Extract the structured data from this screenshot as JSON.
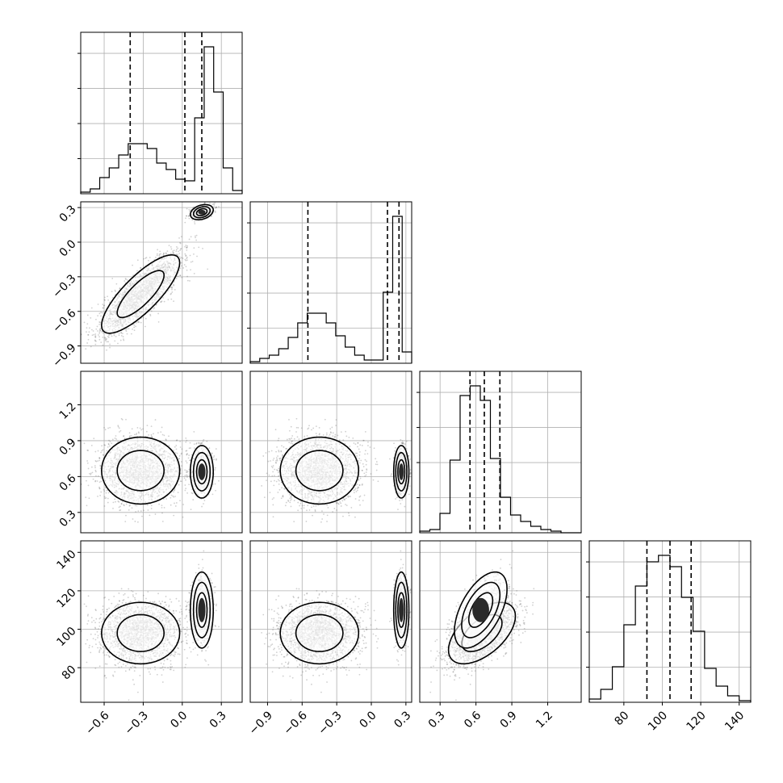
{
  "chart_data": {
    "type": "corner",
    "grid": true,
    "colors": {
      "hist": "#000000",
      "points": "#555555",
      "contour": "#000000",
      "grid": "#b0b0b0",
      "fill": "#2a2a2a"
    },
    "params": [
      {
        "id": "p0",
        "range": [
          -0.78,
          0.46
        ],
        "ticks": [
          -0.6,
          -0.3,
          0.0,
          0.3
        ],
        "tick_labels": [
          "−0.6",
          "−0.3",
          "0.0",
          "0.3"
        ],
        "quantiles": [
          -0.4,
          0.02,
          0.15
        ],
        "hist": [
          0.01,
          0.03,
          0.1,
          0.16,
          0.24,
          0.31,
          0.31,
          0.28,
          0.19,
          0.15,
          0.09,
          0.08,
          0.47,
          0.91,
          0.63,
          0.16,
          0.02
        ]
      },
      {
        "id": "p1",
        "range": [
          -1.05,
          0.35
        ],
        "ticks": [
          -0.9,
          -0.6,
          -0.3,
          0.0,
          0.3
        ],
        "tick_labels": [
          "−0.9",
          "−0.6",
          "−0.3",
          "0.0",
          "0.3"
        ],
        "quantiles": [
          -0.55,
          0.14,
          0.24
        ],
        "hist": [
          0.01,
          0.03,
          0.05,
          0.09,
          0.16,
          0.25,
          0.31,
          0.31,
          0.25,
          0.17,
          0.1,
          0.05,
          0.02,
          0.02,
          0.44,
          0.91,
          0.07
        ]
      },
      {
        "id": "p2",
        "range": [
          0.13,
          1.48
        ],
        "ticks": [
          0.3,
          0.6,
          0.9,
          1.2
        ],
        "tick_labels": [
          "0.3",
          "0.6",
          "0.9",
          "1.2"
        ],
        "quantiles": [
          0.55,
          0.67,
          0.8
        ],
        "hist": [
          0.01,
          0.02,
          0.12,
          0.45,
          0.85,
          0.91,
          0.82,
          0.46,
          0.22,
          0.11,
          0.07,
          0.04,
          0.02,
          0.01,
          0.0,
          0.0
        ]
      },
      {
        "id": "p3",
        "range": [
          62,
          146
        ],
        "ticks": [
          80,
          100,
          120,
          140
        ],
        "tick_labels": [
          "80",
          "100",
          "120",
          "140"
        ],
        "quantiles": [
          92,
          104,
          115
        ],
        "hist": [
          0.02,
          0.08,
          0.22,
          0.48,
          0.72,
          0.87,
          0.91,
          0.84,
          0.65,
          0.44,
          0.21,
          0.1,
          0.04,
          0.01
        ]
      }
    ],
    "modes": [
      {
        "weight": 0.78,
        "mean": [
          -0.32,
          -0.45,
          0.65,
          98
        ],
        "sd": [
          0.15,
          0.17,
          0.14,
          8
        ],
        "corr01": 0.8,
        "corr23": 0.1
      },
      {
        "weight": 0.22,
        "mean": [
          0.15,
          0.26,
          0.64,
          110
        ],
        "sd": [
          0.04,
          0.03,
          0.1,
          9
        ],
        "corr01": 0.3,
        "corr23": 0.1
      }
    ],
    "joint_pair_23": {
      "mean": [
        0.65,
        104
      ],
      "sd": [
        0.12,
        11
      ],
      "corr": 0.55
    }
  }
}
